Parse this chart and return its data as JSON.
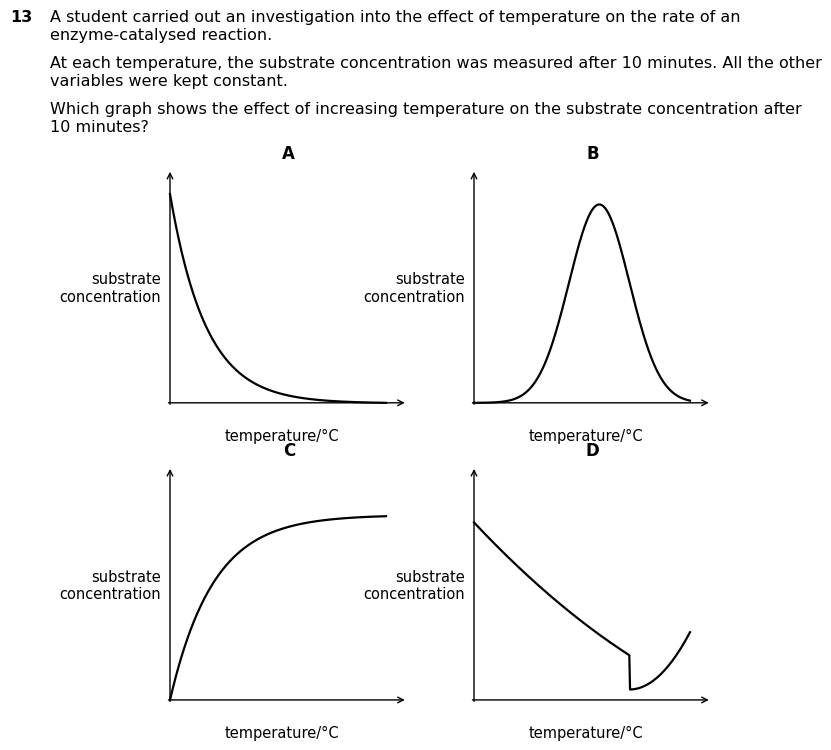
{
  "title_num": "13",
  "title_lines": [
    "A student carried out an investigation into the effect of temperature on the rate of an",
    "enzyme-catalysed reaction.",
    "",
    "At each temperature, the substrate concentration was measured after 10 minutes. All the other",
    "variables were kept constant.",
    "",
    "Which graph shows the effect of increasing temperature on the substrate concentration after",
    "10 minutes?"
  ],
  "graph_labels": [
    "A",
    "B",
    "C",
    "D"
  ],
  "ylabel": "substrate\nconcentration",
  "xlabel": "temperature/°C",
  "bg_color": "#ffffff",
  "line_color": "#000000",
  "font_size_text": 11.5,
  "font_size_label": 10.5,
  "font_size_graph_label": 12
}
